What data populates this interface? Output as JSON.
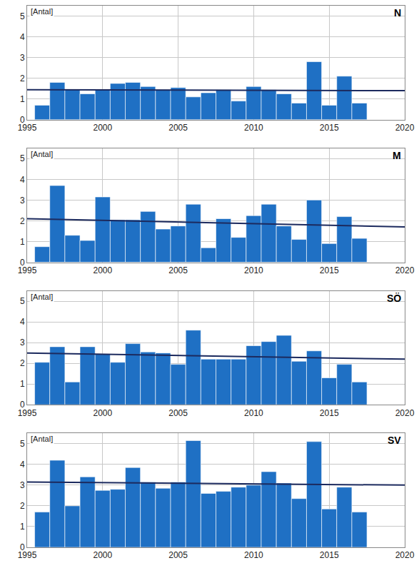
{
  "chart_data": [
    {
      "type": "bar",
      "title": "N",
      "y_label": "[Antal]",
      "grid": true,
      "xlim": [
        1995,
        2020
      ],
      "xticks": [
        1995,
        2000,
        2005,
        2010,
        2015,
        2020
      ],
      "ylim": [
        0,
        5.5
      ],
      "yticks": [
        0,
        1,
        2,
        3,
        4,
        5
      ],
      "series": [
        {
          "type": "bar",
          "color": "#1f70c4",
          "x": [
            1996,
            1997,
            1998,
            1999,
            2000,
            2001,
            2002,
            2003,
            2004,
            2005,
            2006,
            2007,
            2008,
            2009,
            2010,
            2011,
            2012,
            2013,
            2014,
            2015,
            2016,
            2017
          ],
          "values": [
            0.7,
            1.8,
            1.45,
            1.25,
            1.45,
            1.75,
            1.8,
            1.6,
            1.45,
            1.55,
            1.1,
            1.3,
            1.45,
            0.9,
            1.6,
            1.45,
            1.25,
            0.8,
            2.8,
            0.7,
            2.1,
            0.8
          ]
        },
        {
          "type": "line",
          "color": "#1c2a5e",
          "x": [
            1995,
            2020
          ],
          "values": [
            1.45,
            1.4
          ]
        }
      ]
    },
    {
      "type": "bar",
      "title": "M",
      "y_label": "[Antal]",
      "grid": true,
      "xlim": [
        1995,
        2020
      ],
      "xticks": [
        1995,
        2000,
        2005,
        2010,
        2015,
        2020
      ],
      "ylim": [
        0,
        5.5
      ],
      "yticks": [
        0,
        1,
        2,
        3,
        4,
        5
      ],
      "series": [
        {
          "type": "bar",
          "color": "#1f70c4",
          "x": [
            1996,
            1997,
            1998,
            1999,
            2000,
            2001,
            2002,
            2003,
            2004,
            2005,
            2006,
            2007,
            2008,
            2009,
            2010,
            2011,
            2012,
            2013,
            2014,
            2015,
            2016,
            2017
          ],
          "values": [
            0.75,
            3.7,
            1.3,
            1.05,
            3.15,
            2.05,
            2.05,
            2.45,
            1.6,
            1.75,
            2.8,
            0.7,
            2.1,
            1.2,
            2.25,
            2.8,
            1.75,
            1.1,
            3.0,
            0.9,
            2.2,
            1.15
          ]
        },
        {
          "type": "line",
          "color": "#1c2a5e",
          "x": [
            1995,
            2020
          ],
          "values": [
            2.1,
            1.7
          ]
        }
      ]
    },
    {
      "type": "bar",
      "title": "SÖ",
      "y_label": "[Antal]",
      "grid": true,
      "xlim": [
        1995,
        2020
      ],
      "xticks": [
        1995,
        2000,
        2005,
        2010,
        2015,
        2020
      ],
      "ylim": [
        0,
        5.5
      ],
      "yticks": [
        0,
        1,
        2,
        3,
        4,
        5
      ],
      "series": [
        {
          "type": "bar",
          "color": "#1f70c4",
          "x": [
            1996,
            1997,
            1998,
            1999,
            2000,
            2001,
            2002,
            2003,
            2004,
            2005,
            2006,
            2007,
            2008,
            2009,
            2010,
            2011,
            2012,
            2013,
            2014,
            2015,
            2016,
            2017
          ],
          "values": [
            2.05,
            2.8,
            1.1,
            2.8,
            2.45,
            2.05,
            2.95,
            2.55,
            2.5,
            1.95,
            3.6,
            2.2,
            2.2,
            2.2,
            2.85,
            3.05,
            3.35,
            2.1,
            2.6,
            1.3,
            1.95,
            1.1
          ]
        },
        {
          "type": "line",
          "color": "#1c2a5e",
          "x": [
            1995,
            2020
          ],
          "values": [
            2.5,
            2.2
          ]
        }
      ]
    },
    {
      "type": "bar",
      "title": "SV",
      "y_label": "[Antal]",
      "grid": true,
      "xlim": [
        1995,
        2020
      ],
      "xticks": [
        1995,
        2000,
        2005,
        2010,
        2015,
        2020
      ],
      "ylim": [
        0,
        5.5
      ],
      "yticks": [
        0,
        1,
        2,
        3,
        4,
        5
      ],
      "series": [
        {
          "type": "bar",
          "color": "#1f70c4",
          "x": [
            1996,
            1997,
            1998,
            1999,
            2000,
            2001,
            2002,
            2003,
            2004,
            2005,
            2006,
            2007,
            2008,
            2009,
            2010,
            2011,
            2012,
            2013,
            2014,
            2015,
            2016,
            2017
          ],
          "values": [
            1.7,
            4.2,
            2.0,
            3.4,
            2.75,
            2.8,
            3.85,
            3.15,
            2.85,
            3.15,
            5.15,
            2.6,
            2.7,
            2.9,
            3.0,
            3.65,
            3.1,
            2.35,
            5.1,
            1.85,
            2.9,
            1.7
          ]
        },
        {
          "type": "line",
          "color": "#1c2a5e",
          "x": [
            1995,
            2020
          ],
          "values": [
            3.15,
            3.0
          ]
        }
      ]
    }
  ]
}
